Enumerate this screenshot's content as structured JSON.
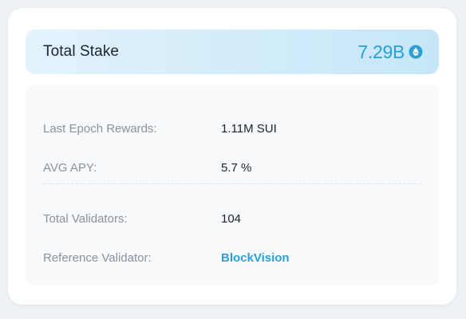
{
  "stake": {
    "title": "Total Stake",
    "value": "7.29B",
    "icon": "sui-drop-icon",
    "accent_color": "#2aa0d8"
  },
  "details": {
    "rows": [
      {
        "label": "Last Epoch Rewards:",
        "value": "1.11M SUI"
      },
      {
        "label": "AVG APY:",
        "value": "5.7 %"
      },
      {
        "label": "Total Validators:",
        "value": "104"
      },
      {
        "label": "Reference Validator:",
        "value": "BlockVision"
      }
    ]
  }
}
